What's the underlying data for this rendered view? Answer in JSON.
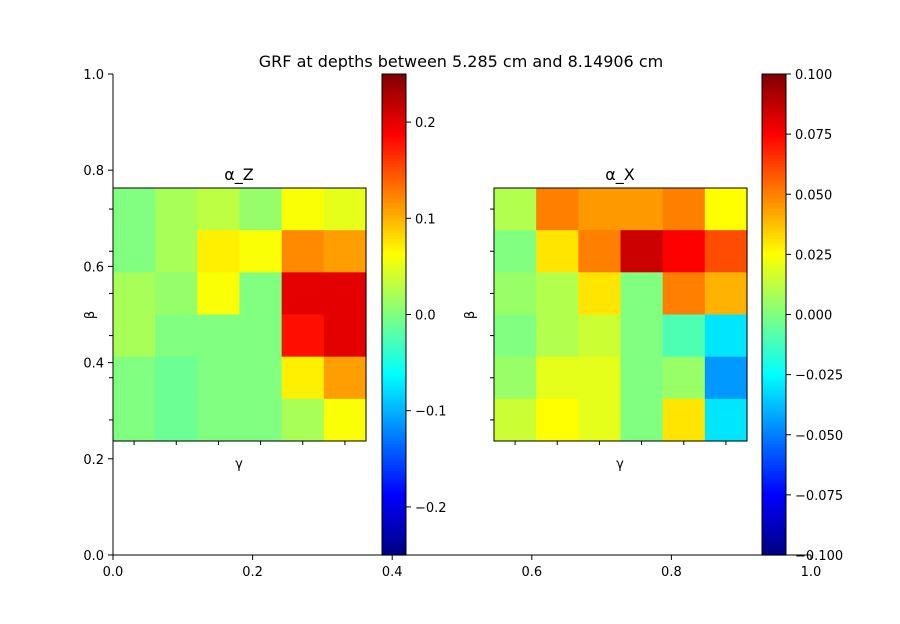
{
  "figure": {
    "suptitle": "GRF at depths between 5.285 cm and 8.14906 cm"
  },
  "outer_axes": {
    "x_ticks": [
      "0.0",
      "0.2",
      "0.4",
      "0.6",
      "0.8",
      "1.0"
    ],
    "y_ticks": [
      "0.0",
      "0.2",
      "0.4",
      "0.6",
      "0.8",
      "1.0"
    ]
  },
  "chart_data": [
    {
      "type": "heatmap",
      "title": "α_Z",
      "xlabel": "γ",
      "ylabel": "β",
      "colormap": "jet",
      "vmin": -0.25,
      "vmax": 0.25,
      "colorbar_ticks": [
        "−0.2",
        "−0.1",
        "0.0",
        "0.1",
        "0.2"
      ],
      "colorbar_tick_values": [
        -0.2,
        -0.1,
        0.0,
        0.1,
        0.2
      ],
      "rows_top_to_bottom": [
        [
          0.0,
          0.02,
          0.03,
          0.01,
          0.06,
          0.05
        ],
        [
          0.0,
          0.02,
          0.07,
          0.06,
          0.12,
          0.11
        ],
        [
          0.02,
          0.01,
          0.06,
          0.0,
          0.2,
          0.2
        ],
        [
          0.02,
          0.0,
          0.0,
          0.0,
          0.18,
          0.2
        ],
        [
          0.0,
          -0.01,
          0.0,
          0.0,
          0.07,
          0.11
        ],
        [
          0.0,
          -0.01,
          0.0,
          0.0,
          0.02,
          0.06
        ]
      ]
    },
    {
      "type": "heatmap",
      "title": "α_X",
      "xlabel": "γ",
      "ylabel": "β",
      "colormap": "jet",
      "vmin": -0.1,
      "vmax": 0.1,
      "colorbar_ticks": [
        "−0.100",
        "−0.075",
        "−0.050",
        "−0.025",
        "0.000",
        "0.025",
        "0.050",
        "0.075",
        "0.100"
      ],
      "colorbar_tick_values": [
        -0.1,
        -0.075,
        -0.05,
        -0.025,
        0.0,
        0.025,
        0.05,
        0.075,
        0.1
      ],
      "rows_top_to_bottom": [
        [
          0.01,
          0.05,
          0.045,
          0.045,
          0.05,
          0.025
        ],
        [
          0.0,
          0.03,
          0.05,
          0.085,
          0.075,
          0.06
        ],
        [
          0.005,
          0.01,
          0.03,
          0.0,
          0.05,
          0.04
        ],
        [
          0.0,
          0.01,
          0.015,
          0.0,
          -0.01,
          -0.03
        ],
        [
          0.005,
          0.02,
          0.02,
          0.0,
          0.005,
          -0.045
        ],
        [
          0.015,
          0.025,
          0.02,
          0.0,
          0.03,
          -0.03
        ]
      ]
    }
  ]
}
